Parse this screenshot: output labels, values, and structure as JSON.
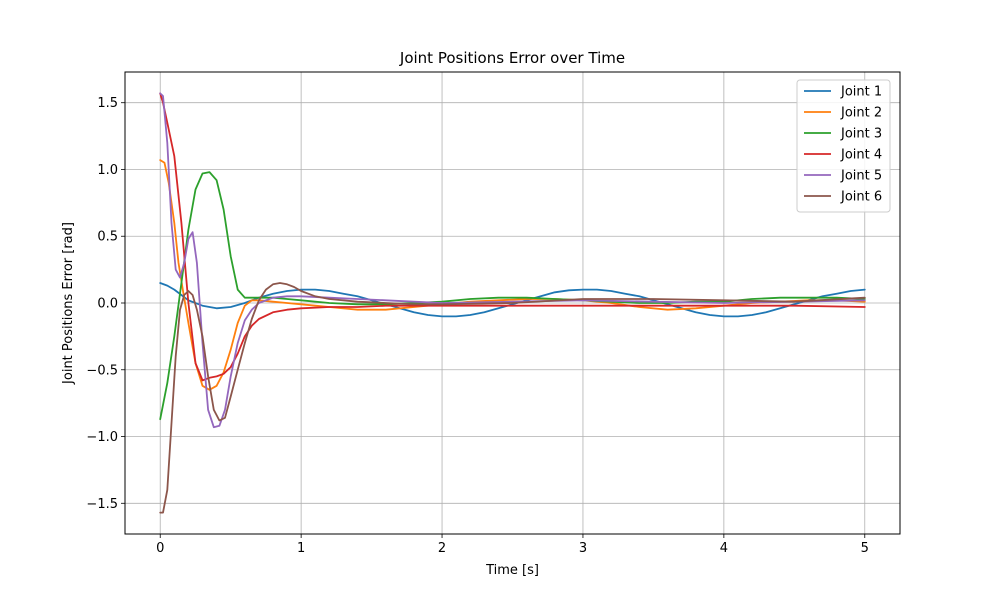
{
  "chart_data": {
    "type": "line",
    "title": "Joint Positions Error over Time",
    "xlabel": "Time [s]",
    "ylabel": "Joint Positions Error [rad]",
    "xlim": [
      -0.25,
      5.25
    ],
    "ylim": [
      -1.73,
      1.73
    ],
    "xticks": [
      0,
      1,
      2,
      3,
      4,
      5
    ],
    "yticks": [
      -1.5,
      -1.0,
      -0.5,
      0.0,
      0.5,
      1.0,
      1.5
    ],
    "xtick_labels": [
      "0",
      "1",
      "2",
      "3",
      "4",
      "5"
    ],
    "ytick_labels": [
      "−1.5",
      "−1.0",
      "−0.5",
      "0.0",
      "0.5",
      "1.0",
      "1.5"
    ],
    "grid": true,
    "legend_position": "top-right",
    "series": [
      {
        "name": "Joint 1",
        "color": "#1f77b4",
        "x": [
          0,
          0.05,
          0.1,
          0.15,
          0.2,
          0.3,
          0.4,
          0.5,
          0.6,
          0.7,
          0.8,
          0.9,
          1.0,
          1.1,
          1.2,
          1.3,
          1.4,
          1.5,
          1.6,
          1.7,
          1.8,
          1.9,
          2.0,
          2.1,
          2.2,
          2.3,
          2.4,
          2.5,
          2.6,
          2.7,
          2.8,
          2.9,
          3.0,
          3.1,
          3.2,
          3.3,
          3.4,
          3.5,
          3.6,
          3.7,
          3.8,
          3.9,
          4.0,
          4.1,
          4.2,
          4.3,
          4.4,
          4.5,
          4.6,
          4.7,
          4.8,
          4.9,
          5.0
        ],
        "y": [
          0.15,
          0.13,
          0.1,
          0.06,
          0.02,
          -0.02,
          -0.04,
          -0.03,
          0.0,
          0.04,
          0.07,
          0.09,
          0.1,
          0.1,
          0.09,
          0.07,
          0.05,
          0.02,
          -0.01,
          -0.04,
          -0.07,
          -0.09,
          -0.1,
          -0.1,
          -0.09,
          -0.07,
          -0.04,
          -0.01,
          0.02,
          0.05,
          0.08,
          0.095,
          0.1,
          0.1,
          0.09,
          0.07,
          0.05,
          0.02,
          -0.01,
          -0.04,
          -0.07,
          -0.09,
          -0.1,
          -0.1,
          -0.09,
          -0.07,
          -0.04,
          -0.01,
          0.02,
          0.05,
          0.07,
          0.09,
          0.1
        ]
      },
      {
        "name": "Joint 2",
        "color": "#ff7f0e",
        "x": [
          0,
          0.03,
          0.06,
          0.1,
          0.13,
          0.16,
          0.2,
          0.25,
          0.3,
          0.35,
          0.4,
          0.45,
          0.5,
          0.55,
          0.6,
          0.65,
          0.7,
          0.8,
          0.9,
          1.0,
          1.2,
          1.4,
          1.6,
          1.8,
          2.0,
          2.2,
          2.4,
          2.6,
          2.8,
          3.0,
          3.2,
          3.4,
          3.6,
          3.8,
          4.0,
          4.2,
          4.4,
          4.6,
          4.8,
          5.0
        ],
        "y": [
          1.07,
          1.05,
          0.9,
          0.6,
          0.3,
          0.1,
          -0.15,
          -0.45,
          -0.62,
          -0.65,
          -0.62,
          -0.52,
          -0.35,
          -0.15,
          -0.02,
          0.02,
          0.02,
          0.01,
          0.0,
          -0.01,
          -0.03,
          -0.05,
          -0.05,
          -0.03,
          -0.01,
          0.01,
          0.02,
          0.03,
          0.03,
          0.02,
          0.0,
          -0.03,
          -0.05,
          -0.04,
          -0.02,
          0.0,
          0.01,
          0.02,
          0.02,
          0.01
        ]
      },
      {
        "name": "Joint 3",
        "color": "#2ca02c",
        "x": [
          0,
          0.05,
          0.1,
          0.15,
          0.2,
          0.25,
          0.3,
          0.35,
          0.4,
          0.45,
          0.5,
          0.55,
          0.6,
          0.65,
          0.7,
          0.8,
          0.9,
          1.0,
          1.2,
          1.4,
          1.6,
          1.8,
          2.0,
          2.2,
          2.4,
          2.6,
          2.8,
          3.0,
          3.2,
          3.4,
          3.6,
          3.8,
          4.0,
          4.2,
          4.4,
          4.6,
          4.8,
          5.0
        ],
        "y": [
          -0.87,
          -0.6,
          -0.25,
          0.15,
          0.55,
          0.85,
          0.97,
          0.98,
          0.92,
          0.7,
          0.35,
          0.1,
          0.04,
          0.04,
          0.04,
          0.04,
          0.03,
          0.02,
          0.0,
          -0.01,
          -0.01,
          0.0,
          0.01,
          0.03,
          0.04,
          0.04,
          0.03,
          0.02,
          0.01,
          0.0,
          0.0,
          0.01,
          0.01,
          0.03,
          0.04,
          0.04,
          0.04,
          0.03
        ]
      },
      {
        "name": "Joint 4",
        "color": "#d62728",
        "x": [
          0,
          0.02,
          0.05,
          0.1,
          0.15,
          0.2,
          0.25,
          0.3,
          0.35,
          0.4,
          0.45,
          0.5,
          0.55,
          0.6,
          0.65,
          0.7,
          0.8,
          0.9,
          1.0,
          1.2,
          1.4,
          1.6,
          1.8,
          2.0,
          2.5,
          3.0,
          3.5,
          4.0,
          4.5,
          5.0
        ],
        "y": [
          1.57,
          1.5,
          1.35,
          1.1,
          0.6,
          0.0,
          -0.45,
          -0.58,
          -0.56,
          -0.55,
          -0.53,
          -0.48,
          -0.38,
          -0.25,
          -0.17,
          -0.12,
          -0.07,
          -0.05,
          -0.04,
          -0.03,
          -0.03,
          -0.02,
          -0.02,
          -0.02,
          -0.02,
          -0.02,
          -0.02,
          -0.02,
          -0.02,
          -0.03
        ]
      },
      {
        "name": "Joint 5",
        "color": "#9467bd",
        "x": [
          0,
          0.02,
          0.05,
          0.08,
          0.11,
          0.14,
          0.17,
          0.2,
          0.23,
          0.26,
          0.3,
          0.34,
          0.38,
          0.42,
          0.46,
          0.5,
          0.55,
          0.6,
          0.65,
          0.7,
          0.8,
          0.9,
          1.0,
          1.2,
          1.4,
          1.6,
          1.8,
          2.0,
          2.5,
          3.0,
          3.5,
          4.0,
          4.5,
          5.0
        ],
        "y": [
          1.57,
          1.55,
          1.2,
          0.6,
          0.25,
          0.19,
          0.3,
          0.48,
          0.53,
          0.3,
          -0.3,
          -0.8,
          -0.93,
          -0.92,
          -0.8,
          -0.55,
          -0.3,
          -0.13,
          -0.05,
          0.0,
          0.04,
          0.05,
          0.05,
          0.04,
          0.03,
          0.02,
          0.01,
          0.0,
          0.01,
          0.02,
          0.01,
          0.0,
          0.01,
          0.02
        ]
      },
      {
        "name": "Joint 6",
        "color": "#8c564b",
        "x": [
          0,
          0.02,
          0.05,
          0.08,
          0.11,
          0.14,
          0.17,
          0.2,
          0.23,
          0.26,
          0.3,
          0.34,
          0.38,
          0.42,
          0.46,
          0.5,
          0.55,
          0.6,
          0.65,
          0.7,
          0.75,
          0.8,
          0.85,
          0.9,
          0.95,
          1.0,
          1.1,
          1.2,
          1.4,
          1.6,
          1.8,
          2.0,
          2.5,
          3.0,
          3.5,
          4.0,
          4.5,
          5.0
        ],
        "y": [
          -1.57,
          -1.57,
          -1.4,
          -0.9,
          -0.4,
          -0.05,
          0.06,
          0.09,
          0.06,
          -0.05,
          -0.25,
          -0.55,
          -0.8,
          -0.88,
          -0.86,
          -0.7,
          -0.5,
          -0.3,
          -0.12,
          0.02,
          0.1,
          0.14,
          0.15,
          0.14,
          0.12,
          0.09,
          0.05,
          0.03,
          0.01,
          0.0,
          -0.01,
          -0.01,
          0.0,
          0.03,
          0.03,
          0.02,
          0.01,
          0.04
        ]
      }
    ]
  }
}
